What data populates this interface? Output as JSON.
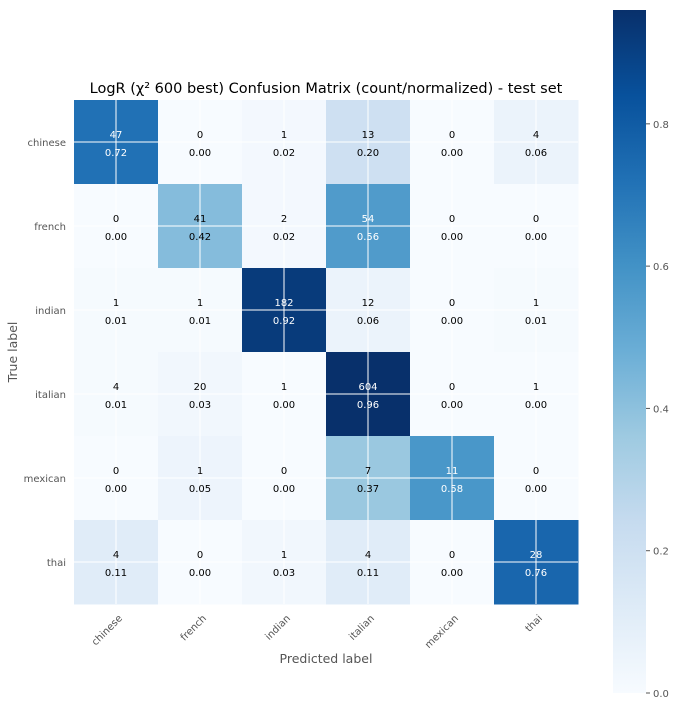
{
  "chart_data": {
    "type": "heatmap",
    "title": "LogR (χ² 600 best) Confusion Matrix (count/normalized) - test set",
    "xlabel": "Predicted label",
    "ylabel": "True label",
    "x_categories": [
      "chinese",
      "french",
      "indian",
      "italian",
      "mexican",
      "thai"
    ],
    "y_categories": [
      "chinese",
      "french",
      "indian",
      "italian",
      "mexican",
      "thai"
    ],
    "counts": [
      [
        47,
        0,
        1,
        13,
        0,
        4
      ],
      [
        0,
        41,
        2,
        54,
        0,
        0
      ],
      [
        1,
        1,
        182,
        12,
        0,
        1
      ],
      [
        4,
        20,
        1,
        604,
        0,
        1
      ],
      [
        0,
        1,
        0,
        7,
        11,
        0
      ],
      [
        4,
        0,
        1,
        4,
        0,
        28
      ]
    ],
    "normalized": [
      [
        "0.72",
        "0.00",
        "0.02",
        "0.20",
        "0.00",
        "0.06"
      ],
      [
        "0.00",
        "0.42",
        "0.02",
        "0.56",
        "0.00",
        "0.00"
      ],
      [
        "0.01",
        "0.01",
        "0.92",
        "0.06",
        "0.00",
        "0.01"
      ],
      [
        "0.01",
        "0.03",
        "0.00",
        "0.96",
        "0.00",
        "0.00"
      ],
      [
        "0.00",
        "0.05",
        "0.00",
        "0.37",
        "0.58",
        "0.00"
      ],
      [
        "0.11",
        "0.00",
        "0.03",
        "0.11",
        "0.00",
        "0.76"
      ]
    ],
    "colorbar": {
      "colormap": "Blues",
      "range": [
        0.0,
        0.96
      ],
      "ticks": [
        "0.0",
        "0.2",
        "0.4",
        "0.6",
        "0.8"
      ]
    },
    "grid": true
  }
}
